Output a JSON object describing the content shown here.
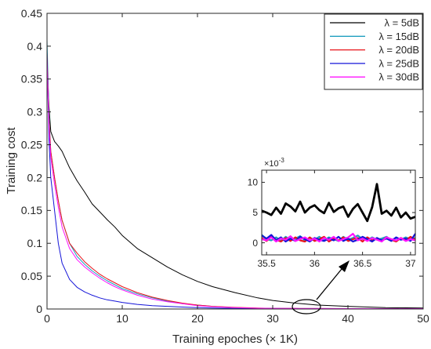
{
  "chart_data": [
    {
      "type": "line",
      "xlabel": "Training epoches (× 1K)",
      "ylabel": "Training cost",
      "xlim": [
        0,
        50
      ],
      "ylim": [
        0,
        0.45
      ],
      "xticks": [
        0,
        10,
        20,
        30,
        40,
        50
      ],
      "yticks": [
        0,
        0.05,
        0.1,
        0.15,
        0.2,
        0.25,
        0.3,
        0.35,
        0.4,
        0.45
      ],
      "xtick_labels": [
        "0",
        "10",
        "20",
        "30",
        "40",
        "50"
      ],
      "ytick_labels": [
        "0",
        "0.05",
        "0.1",
        "0.15",
        "0.2",
        "0.25",
        "0.3",
        "0.35",
        "0.4",
        "0.45"
      ],
      "grid": false,
      "legend_position": "top-right",
      "x": [
        0,
        0.25,
        0.5,
        1,
        1.5,
        2,
        3,
        4,
        5,
        6,
        7,
        8,
        9,
        10,
        12,
        14,
        16,
        18,
        20,
        22,
        25,
        28,
        30,
        33,
        36,
        40,
        45,
        50
      ],
      "series": [
        {
          "name": "λ = 5dB",
          "color": "#000000",
          "values": [
            0.38,
            0.31,
            0.27,
            0.255,
            0.248,
            0.24,
            0.215,
            0.195,
            0.178,
            0.16,
            0.148,
            0.136,
            0.125,
            0.112,
            0.092,
            0.078,
            0.064,
            0.052,
            0.042,
            0.034,
            0.025,
            0.017,
            0.013,
            0.009,
            0.006,
            0.004,
            0.002,
            0.0015
          ]
        },
        {
          "name": "λ = 15dB",
          "color": "#1f9fbf",
          "values": [
            0.41,
            0.3,
            0.24,
            0.2,
            0.165,
            0.135,
            0.1,
            0.08,
            0.068,
            0.058,
            0.05,
            0.043,
            0.037,
            0.031,
            0.023,
            0.017,
            0.012,
            0.008,
            0.006,
            0.004,
            0.002,
            0.0012,
            0.001,
            0.0008,
            0.0007,
            0.0006,
            0.0005,
            0.0005
          ]
        },
        {
          "name": "λ = 20dB",
          "color": "#e8141a",
          "values": [
            0.39,
            0.29,
            0.24,
            0.2,
            0.165,
            0.135,
            0.1,
            0.085,
            0.072,
            0.062,
            0.053,
            0.046,
            0.04,
            0.034,
            0.025,
            0.018,
            0.013,
            0.009,
            0.006,
            0.004,
            0.0025,
            0.0015,
            0.001,
            0.0008,
            0.0007,
            0.0006,
            0.0005,
            0.0005
          ]
        },
        {
          "name": "λ = 25dB",
          "color": "#1414d8",
          "values": [
            0.39,
            0.26,
            0.2,
            0.15,
            0.1,
            0.07,
            0.045,
            0.033,
            0.026,
            0.021,
            0.017,
            0.014,
            0.012,
            0.01,
            0.007,
            0.005,
            0.004,
            0.003,
            0.0022,
            0.0015,
            0.001,
            0.0008,
            0.0007,
            0.0006,
            0.0005,
            0.0005,
            0.0004,
            0.0004
          ]
        },
        {
          "name": "λ = 30dB",
          "color": "#ff14ff",
          "values": [
            0.38,
            0.28,
            0.23,
            0.19,
            0.155,
            0.125,
            0.092,
            0.075,
            0.064,
            0.055,
            0.047,
            0.04,
            0.034,
            0.029,
            0.021,
            0.015,
            0.011,
            0.008,
            0.005,
            0.0035,
            0.002,
            0.0012,
            0.001,
            0.0008,
            0.0007,
            0.0006,
            0.0005,
            0.0005
          ]
        }
      ]
    },
    {
      "type": "line",
      "xlim": [
        35.45,
        37.05
      ],
      "ylim": [
        -2,
        12
      ],
      "y_exponent_label": "×10",
      "y_exponent_power": "-3",
      "xticks": [
        35.5,
        36,
        36.5,
        37
      ],
      "yticks": [
        0,
        5,
        10
      ],
      "xtick_labels": [
        "35.5",
        "36",
        "36.5",
        "37"
      ],
      "ytick_labels": [
        "0",
        "5",
        "10"
      ],
      "x": [
        35.45,
        35.5,
        35.55,
        35.6,
        35.65,
        35.7,
        35.75,
        35.8,
        35.85,
        35.9,
        35.95,
        36.0,
        36.05,
        36.1,
        36.15,
        36.2,
        36.25,
        36.3,
        36.35,
        36.4,
        36.45,
        36.5,
        36.55,
        36.6,
        36.65,
        36.7,
        36.75,
        36.8,
        36.85,
        36.9,
        36.95,
        37.0,
        37.05
      ],
      "series": [
        {
          "name": "λ = 5dB",
          "color": "#000000",
          "values": [
            5.3,
            5.0,
            4.6,
            5.8,
            4.8,
            6.5,
            6.0,
            5.2,
            6.8,
            5.0,
            5.8,
            6.2,
            5.4,
            4.9,
            6.6,
            5.1,
            5.7,
            6.0,
            4.3,
            5.6,
            6.4,
            5.0,
            3.6,
            5.9,
            9.7,
            4.8,
            5.3,
            4.5,
            5.8,
            4.2,
            5.0,
            4.0,
            4.3
          ]
        },
        {
          "name": "λ = 15dB",
          "color": "#1f9fbf",
          "values": [
            1.3,
            0.6,
            0.4,
            0.9,
            0.3,
            1.0,
            0.5,
            0.7,
            1.1,
            0.4,
            0.8,
            0.5,
            1.0,
            0.4,
            0.9,
            0.6,
            0.3,
            1.0,
            0.5,
            0.8,
            1.2,
            0.6,
            0.4,
            0.9,
            0.5,
            0.7,
            1.0,
            0.4,
            0.8,
            0.5,
            0.9,
            0.6,
            0.8
          ]
        },
        {
          "name": "λ = 20dB",
          "color": "#e8141a",
          "values": [
            0.8,
            0.3,
            1.0,
            0.5,
            0.2,
            0.8,
            0.3,
            0.9,
            0.4,
            0.2,
            0.9,
            0.3,
            0.6,
            1.0,
            0.2,
            0.7,
            0.4,
            0.9,
            0.3,
            0.6,
            0.8,
            0.2,
            0.9,
            0.4,
            0.7,
            0.3,
            0.9,
            0.5,
            0.2,
            0.8,
            0.4,
            1.0,
            0.5
          ]
        },
        {
          "name": "λ = 25dB",
          "color": "#1414d8",
          "values": [
            1.2,
            0.7,
            1.3,
            0.4,
            0.9,
            0.2,
            0.7,
            0.3,
            1.0,
            0.6,
            0.2,
            0.8,
            0.5,
            0.3,
            0.7,
            0.4,
            1.0,
            0.3,
            0.7,
            0.2,
            0.5,
            1.0,
            0.6,
            0.2,
            0.8,
            0.4,
            0.7,
            0.3,
            0.9,
            0.5,
            0.7,
            0.3,
            1.5
          ]
        },
        {
          "name": "λ = 30dB",
          "color": "#ff14ff",
          "values": [
            0.6,
            0.4,
            0.9,
            0.2,
            0.7,
            0.5,
            1.1,
            0.3,
            0.6,
            0.9,
            0.4,
            0.7,
            0.2,
            0.8,
            0.5,
            1.0,
            0.3,
            0.6,
            0.9,
            1.5,
            0.4,
            0.7,
            0.3,
            0.8,
            0.5,
            0.2,
            0.9,
            0.6,
            0.4,
            0.8,
            0.3,
            0.6,
            0.4
          ]
        }
      ]
    }
  ]
}
